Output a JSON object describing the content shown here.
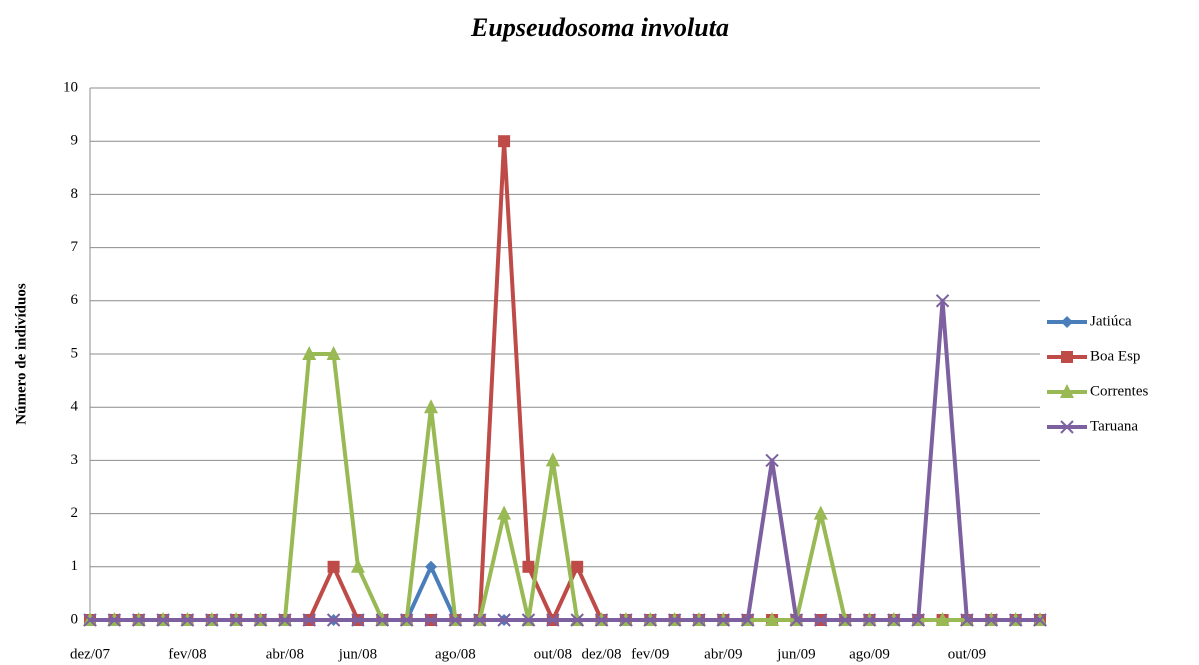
{
  "chart_data": {
    "type": "line",
    "title": "Eupseudosoma involuta",
    "y_label": "Número de indivíduos",
    "categories": [
      "dez/07",
      null,
      null,
      null,
      "fev/08",
      null,
      null,
      null,
      "abr/08",
      null,
      null,
      "jun/08",
      null,
      null,
      null,
      "ago/08",
      null,
      null,
      null,
      "out/08",
      null,
      "dez/08",
      null,
      "fev/09",
      null,
      null,
      "abr/09",
      null,
      null,
      "jun/09",
      null,
      null,
      "ago/09",
      null,
      null,
      null,
      "out/09",
      null,
      null,
      null
    ],
    "series": [
      {
        "name": "Jatiúca",
        "color": "#4a7ebb",
        "marker": "diamond",
        "values": [
          0,
          0,
          0,
          0,
          0,
          0,
          0,
          0,
          0,
          0,
          0,
          0,
          0,
          0,
          1,
          0,
          0,
          0,
          0,
          0,
          0,
          0,
          0,
          0,
          0,
          0,
          0,
          0,
          0,
          0,
          0,
          0,
          0,
          0,
          0,
          0,
          0,
          0,
          0,
          0
        ]
      },
      {
        "name": "Boa Esp",
        "color": "#be4b48",
        "marker": "square",
        "values": [
          0,
          0,
          0,
          0,
          0,
          0,
          0,
          0,
          0,
          0,
          1,
          0,
          0,
          0,
          0,
          0,
          0,
          9,
          1,
          0,
          1,
          0,
          0,
          0,
          0,
          0,
          0,
          0,
          0,
          0,
          0,
          0,
          0,
          0,
          0,
          0,
          0,
          0,
          0,
          0
        ]
      },
      {
        "name": "Correntes",
        "color": "#98b954",
        "marker": "triangle",
        "values": [
          0,
          0,
          0,
          0,
          0,
          0,
          0,
          0,
          0,
          5,
          5,
          1,
          0,
          0,
          4,
          0,
          0,
          2,
          0,
          3,
          0,
          0,
          0,
          0,
          0,
          0,
          0,
          0,
          0,
          0,
          2,
          0,
          0,
          0,
          0,
          0,
          0,
          0,
          0,
          0
        ]
      },
      {
        "name": "Taruana",
        "color": "#7d60a0",
        "marker": "x",
        "values": [
          0,
          0,
          0,
          0,
          0,
          0,
          0,
          0,
          0,
          0,
          0,
          0,
          0,
          0,
          0,
          0,
          0,
          0,
          0,
          0,
          0,
          0,
          0,
          0,
          0,
          0,
          0,
          0,
          3,
          0,
          0,
          0,
          0,
          0,
          0,
          6,
          0,
          0,
          0,
          0
        ]
      }
    ],
    "ylim": [
      0,
      10
    ],
    "yticks": [
      0,
      1,
      2,
      3,
      4,
      5,
      6,
      7,
      8,
      9,
      10
    ],
    "grid": true
  }
}
